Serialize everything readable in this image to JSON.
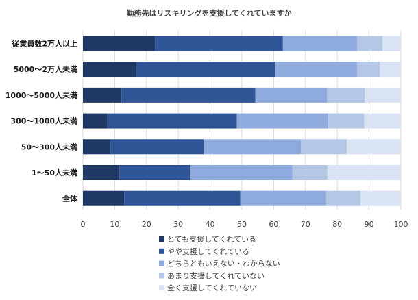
{
  "chart_data": {
    "type": "bar",
    "orientation": "horizontal",
    "stacked": true,
    "title": "勤務先はリスキリングを支援してくれていますか",
    "categories": [
      "従業員数2万人以上",
      "5000～2万人未満",
      "1000～5000人未満",
      "300～1000人未満",
      "50～300人未満",
      "1～50人未満",
      "全体"
    ],
    "series": [
      {
        "name": "とても支援してくれている",
        "color": "#203864",
        "values": [
          22.7,
          16.9,
          12.1,
          7.7,
          8.7,
          11.5,
          13.0
        ]
      },
      {
        "name": "やや支援してくれている",
        "color": "#2f5597",
        "values": [
          40.2,
          43.7,
          42.1,
          40.7,
          29.3,
          22.2,
          36.5
        ]
      },
      {
        "name": "どちらともいえない・わからない",
        "color": "#8faadc",
        "values": [
          23.3,
          25.6,
          22.6,
          28.8,
          30.6,
          32.2,
          27.0
        ]
      },
      {
        "name": "あまり支援してくれていない",
        "color": "#b4c7e7",
        "values": [
          8.0,
          7.2,
          11.8,
          11.3,
          14.4,
          11.0,
          10.8
        ]
      },
      {
        "name": "全く支援してくれていない",
        "color": "#dae3f3",
        "values": [
          5.8,
          6.6,
          11.4,
          11.5,
          17.0,
          23.1,
          12.7
        ]
      }
    ],
    "xlim": [
      0,
      100
    ],
    "xticks": [
      0,
      10,
      20,
      30,
      40,
      50,
      60,
      70,
      80,
      90,
      100
    ],
    "grid": true,
    "legend_position": "bottom"
  }
}
